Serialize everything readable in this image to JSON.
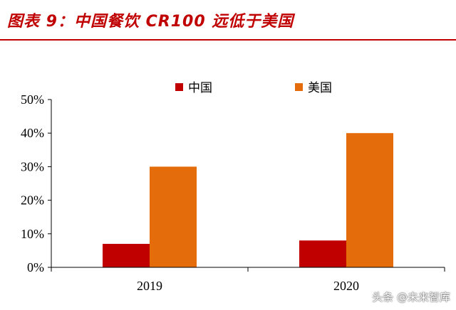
{
  "title": "图表 9：中国餐饮 CR100 远低于美国",
  "watermark": "头条 @未来智库",
  "colors": {
    "title": "#c00000",
    "china": "#c00000",
    "usa": "#e46c0a"
  },
  "chart_data": {
    "type": "bar",
    "categories": [
      "2019",
      "2020"
    ],
    "series": [
      {
        "name": "中国",
        "values": [
          7,
          8
        ],
        "color": "#c00000"
      },
      {
        "name": "美国",
        "values": [
          30,
          40
        ],
        "color": "#e46c0a"
      }
    ],
    "yticks": [
      "0%",
      "10%",
      "20%",
      "30%",
      "40%",
      "50%"
    ],
    "ylim": [
      0,
      50
    ],
    "legend": "top-center",
    "grid": false
  }
}
